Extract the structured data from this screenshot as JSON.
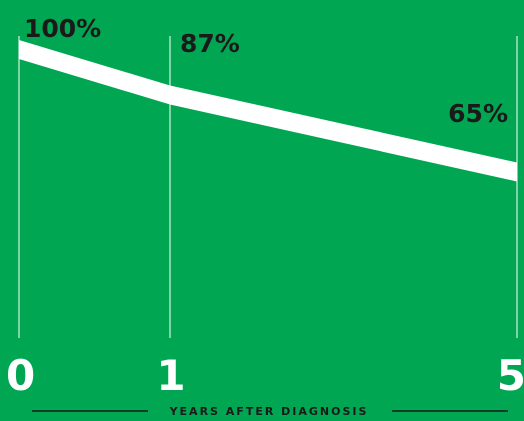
{
  "chart_data": {
    "type": "area",
    "x": [
      0,
      1,
      5
    ],
    "values": [
      100,
      87,
      65
    ],
    "data_labels": [
      "100%",
      "87%",
      "65%"
    ],
    "tick_labels": [
      "0",
      "1",
      "5"
    ],
    "xlabel": "YEARS AFTER DIAGNOSIS",
    "ylabel": "",
    "title": "",
    "grid": true,
    "colors": {
      "background": "#00a651",
      "band": "#ffffff",
      "label_text": "#1a1a1a",
      "tick_text": "#ffffff",
      "gridline": "#ffffff"
    }
  }
}
